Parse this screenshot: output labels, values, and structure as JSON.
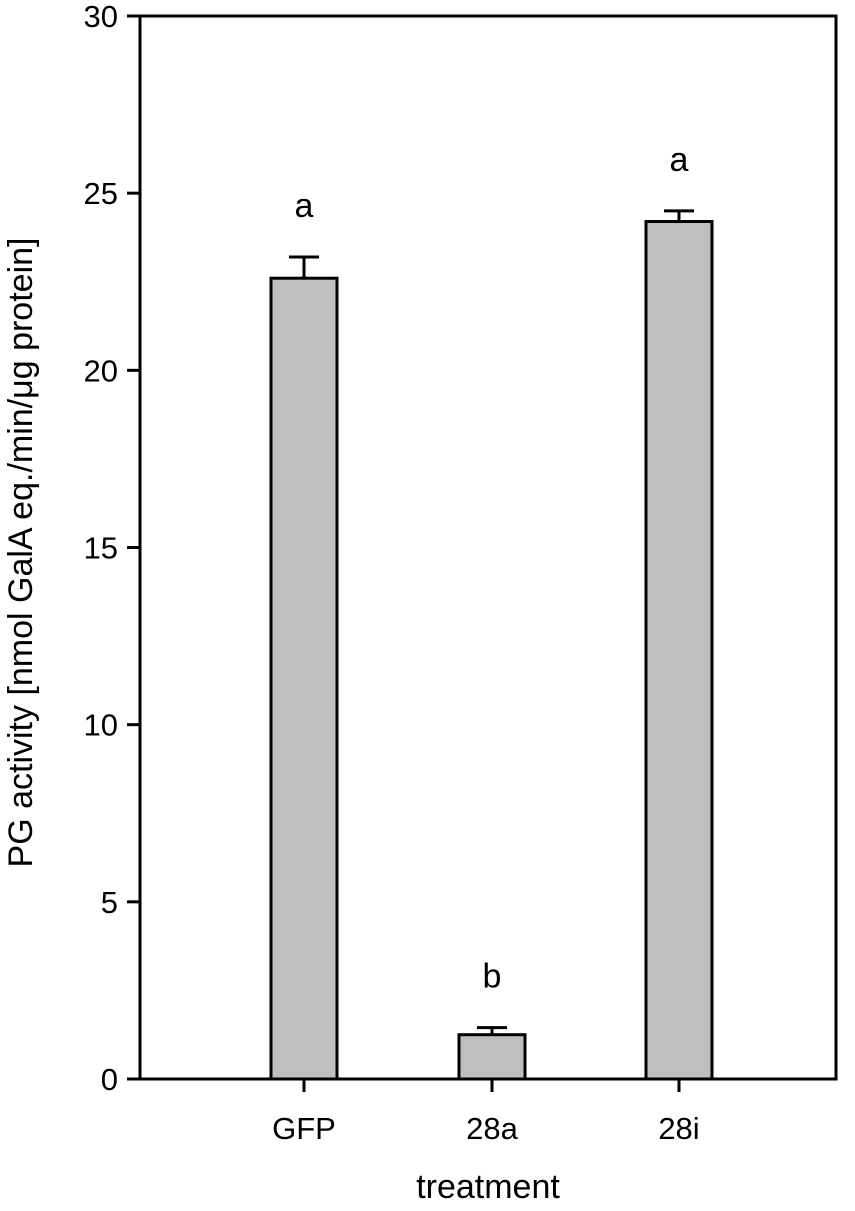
{
  "chart_data": {
    "type": "bar",
    "title": "",
    "xlabel": "treatment",
    "ylabel": "PG activity [nmol GalA eq./min/μg protein]",
    "ylim": [
      0,
      30
    ],
    "yticks": [
      0,
      5,
      10,
      15,
      20,
      25,
      30
    ],
    "categories": [
      "GFP",
      "28a",
      "28i"
    ],
    "values": [
      22.6,
      1.25,
      24.2
    ],
    "error": [
      0.6,
      0.2,
      0.3
    ],
    "significance_letters": [
      "a",
      "b",
      "a"
    ],
    "bar_color": "#bfbfbf",
    "edge_color": "#000000",
    "grid": false,
    "legend": "none"
  }
}
